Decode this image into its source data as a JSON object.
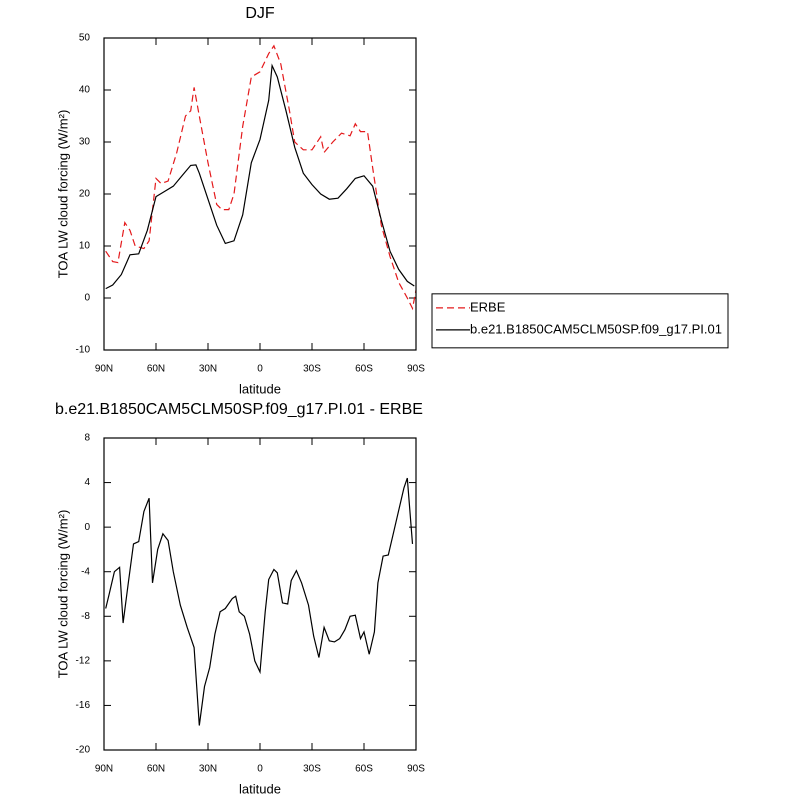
{
  "chart_data": [
    {
      "type": "line",
      "title": "DJF",
      "xlabel": "latitude",
      "ylabel": "TOA LW cloud forcing (W/m²)",
      "xlim": [
        90,
        -90
      ],
      "xticks": [
        {
          "value": 90,
          "label": "90N"
        },
        {
          "value": 60,
          "label": "60N"
        },
        {
          "value": 30,
          "label": "30N"
        },
        0,
        {
          "value": -30,
          "label": "30S"
        },
        {
          "value": -60,
          "label": "60S"
        },
        {
          "value": -90,
          "label": "90S"
        }
      ],
      "ylim": [
        -10,
        50
      ],
      "yticks": [
        -10,
        0,
        10,
        20,
        30,
        40,
        50
      ],
      "legend": "right",
      "series": [
        {
          "name": "ERBE",
          "color": "#e41a1c",
          "dash": true,
          "x": [
            89,
            85,
            82,
            78,
            75,
            72,
            67,
            64,
            60,
            57,
            53,
            48,
            43,
            40,
            38,
            35,
            30,
            25,
            22,
            18,
            15,
            10,
            5,
            0,
            -5,
            -8,
            -12,
            -17,
            -20,
            -25,
            -30,
            -35,
            -37,
            -42,
            -47,
            -52,
            -55,
            -58,
            -62,
            -65,
            -70,
            -75,
            -80,
            -85,
            -88,
            -90
          ],
          "values": [
            9,
            7,
            6.8,
            14.5,
            13,
            10,
            9.5,
            11,
            23,
            22,
            22.5,
            28,
            35,
            36,
            40.5,
            35,
            26,
            18,
            17,
            17,
            20,
            33,
            42.5,
            43.5,
            47,
            48.5,
            45,
            36,
            30,
            28.5,
            28.5,
            31,
            28,
            30,
            31.7,
            31.2,
            33.5,
            32,
            32,
            25,
            14,
            8,
            3,
            0,
            -2,
            1.5
          ]
        },
        {
          "name": "b.e21.B1850CAM5CLM50SP.f09_g17.PI.01",
          "color": "#000000",
          "dash": false,
          "x": [
            89,
            85,
            80,
            75,
            70,
            65,
            60,
            55,
            50,
            45,
            40,
            37,
            35,
            30,
            25,
            20,
            15,
            10,
            5,
            0,
            -5,
            -7,
            -10,
            -15,
            -20,
            -25,
            -30,
            -35,
            -40,
            -45,
            -50,
            -55,
            -60,
            -65,
            -70,
            -75,
            -80,
            -85,
            -89
          ],
          "values": [
            1.8,
            2.5,
            4.5,
            8.3,
            8.5,
            13,
            19.5,
            20.5,
            21.5,
            23.5,
            25.5,
            25.6,
            24,
            19,
            14,
            10.5,
            11,
            16,
            26,
            30.5,
            38,
            44.7,
            42.5,
            36,
            29,
            24,
            21.8,
            20,
            19,
            19.2,
            21,
            23,
            23.5,
            21.5,
            15,
            9,
            5.5,
            3.2,
            2.3
          ]
        }
      ]
    },
    {
      "type": "line",
      "title": "b.e21.B1850CAM5CLM50SP.f09_g17.PI.01 - ERBE",
      "xlabel": "latitude",
      "ylabel": "TOA LW cloud forcing (W/m²)",
      "xlim": [
        90,
        -90
      ],
      "xticks": [
        {
          "value": 90,
          "label": "90N"
        },
        {
          "value": 60,
          "label": "60N"
        },
        {
          "value": 30,
          "label": "30N"
        },
        0,
        {
          "value": -30,
          "label": "30S"
        },
        {
          "value": -60,
          "label": "60S"
        },
        {
          "value": -90,
          "label": "90S"
        }
      ],
      "ylim": [
        -20,
        8
      ],
      "yticks": [
        -20,
        -16,
        -12,
        -8,
        -4,
        0,
        4,
        8
      ],
      "series": [
        {
          "color": "#000000",
          "dash": false,
          "x": [
            89,
            87,
            84,
            81,
            79,
            76,
            73,
            70,
            67,
            64,
            62,
            59,
            56,
            53,
            50,
            46,
            42,
            38,
            35,
            32,
            29,
            26,
            23,
            20,
            16,
            14,
            12,
            9,
            6,
            3,
            0,
            -3,
            -5,
            -8,
            -10,
            -13,
            -16,
            -18,
            -21,
            -24,
            -28,
            -31,
            -34,
            -37,
            -40,
            -43,
            -46,
            -49,
            -52,
            -55,
            -58,
            -60,
            -63,
            -66,
            -68,
            -71,
            -74,
            -77,
            -80,
            -83,
            -85,
            -88
          ],
          "values": [
            -7.3,
            -6,
            -4,
            -3.6,
            -8.6,
            -5,
            -1.5,
            -1.3,
            1.4,
            2.6,
            -5,
            -2,
            -0.6,
            -1.2,
            -4,
            -7,
            -9,
            -10.8,
            -17.8,
            -14.3,
            -12.6,
            -9.6,
            -7.6,
            -7.3,
            -6.4,
            -6.2,
            -7.6,
            -8,
            -9.6,
            -12,
            -13,
            -7.6,
            -4.7,
            -3.8,
            -4.1,
            -6.8,
            -6.9,
            -4.8,
            -3.9,
            -5,
            -7,
            -9.8,
            -11.7,
            -9,
            -10.2,
            -10.3,
            -10,
            -9.2,
            -8,
            -7.9,
            -10,
            -9.4,
            -11.4,
            -9.4,
            -5,
            -2.6,
            -2.5,
            -0.5,
            1.5,
            3.5,
            4.4,
            -1.5
          ]
        }
      ]
    }
  ]
}
